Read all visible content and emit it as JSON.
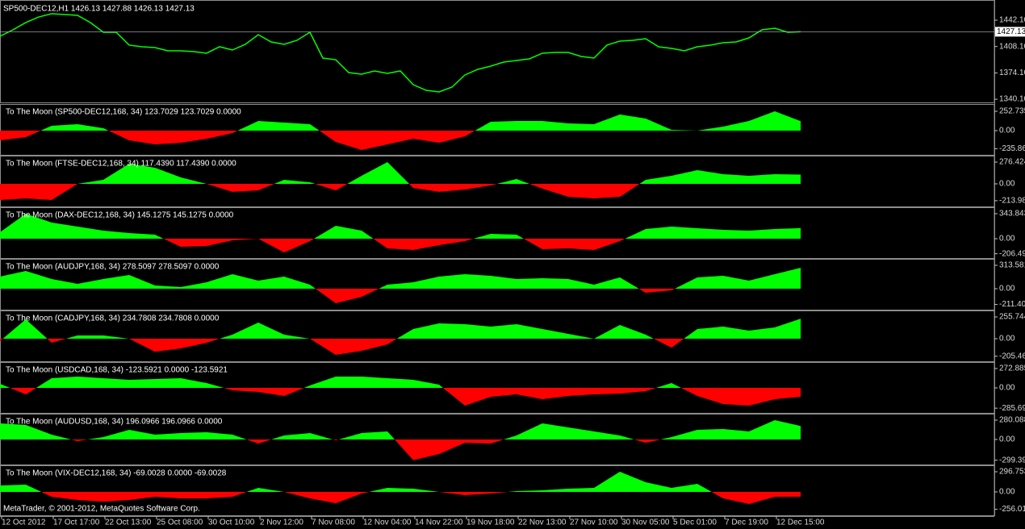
{
  "chart_data": [
    {
      "type": "line",
      "title": "SP500-DEC12,H1  1426.13 1427.88 1426.13 1427.13",
      "color": "#00ff00",
      "ylim": [
        1335,
        1466
      ],
      "yticks": [
        {
          "value": 1442.1,
          "label": "1442.10"
        },
        {
          "value": 1408.1,
          "label": "1408.10"
        },
        {
          "value": 1374.1,
          "label": "1374.10"
        },
        {
          "value": 1340.1,
          "label": "1340.10"
        }
      ],
      "current_price": 1427.13,
      "values": [
        1421.3,
        1429.6,
        1439.0,
        1446.2,
        1450.4,
        1449.4,
        1448.3,
        1439.0,
        1426.5,
        1426.5,
        1409.9,
        1407.8,
        1406.7,
        1402.6,
        1402.6,
        1401.5,
        1399.5,
        1407.8,
        1403.6,
        1410.9,
        1423.4,
        1414.0,
        1410.9,
        1416.1,
        1426.5,
        1393.2,
        1391.1,
        1374.5,
        1372.4,
        1376.6,
        1373.5,
        1376.6,
        1358.9,
        1351.6,
        1349.6,
        1355.8,
        1371.4,
        1378.7,
        1382.8,
        1388.0,
        1390.1,
        1392.2,
        1399.5,
        1400.5,
        1400.5,
        1395.3,
        1393.2,
        1409.9,
        1415.1,
        1416.1,
        1418.2,
        1407.8,
        1405.7,
        1402.6,
        1407.8,
        1409.9,
        1413.0,
        1414.0,
        1419.2,
        1429.6,
        1431.7,
        1426.5,
        1427.13
      ]
    },
    {
      "type": "area",
      "title": "To The Moon (SP500-DEC12,168, 34) 123.7029 123.7029 0.0000",
      "positive_color": "#00ff00",
      "negative_color": "#ff0000",
      "ylim": [
        -316,
        337
      ],
      "yticks": [
        252.735,
        {
          "value": 0,
          "label": "0.00"
        },
        -235.867
      ],
      "values": [
        -126,
        -84,
        63,
        84,
        32,
        -126,
        -179,
        -158,
        -105,
        -32,
        126,
        105,
        84,
        -147,
        -253,
        -179,
        -105,
        -158,
        -74,
        116,
        126,
        126,
        95,
        84,
        211,
        158,
        11,
        0,
        53,
        126,
        253,
        124
      ]
    },
    {
      "type": "area",
      "title": "To The Moon (FTSE-DEC12,168, 34) 117.4390 117.4390 0.0000",
      "positive_color": "#00ff00",
      "negative_color": "#ff0000",
      "ylim": [
        -287,
        348
      ],
      "yticks": [
        276.424,
        {
          "value": 0,
          "label": "0.00"
        },
        -213.981
      ],
      "values": [
        -205,
        -184,
        -205,
        0,
        51,
        256,
        205,
        82,
        0,
        -102,
        -82,
        51,
        20,
        -82,
        102,
        276,
        -51,
        -102,
        -72,
        -20,
        61,
        -61,
        -164,
        -184,
        -164,
        51,
        102,
        174,
        123,
        102,
        123,
        117
      ]
    },
    {
      "type": "area",
      "title": "To The Moon (DAX-DEC12,168, 34) 145.1275 145.1275 0.0000",
      "positive_color": "#00ff00",
      "negative_color": "#ff0000",
      "ylim": [
        -266,
        421
      ],
      "yticks": [
        343.843,
        {
          "value": 0,
          "label": "0.00"
        },
        -206.499
      ],
      "values": [
        89,
        344,
        222,
        166,
        111,
        78,
        55,
        -111,
        -100,
        -22,
        0,
        -189,
        -33,
        177,
        111,
        -133,
        -155,
        -89,
        -33,
        67,
        55,
        -144,
        -133,
        -155,
        -33,
        133,
        166,
        144,
        122,
        111,
        133,
        145
      ]
    },
    {
      "type": "area",
      "title": "To The Moon (AUDJPY,168, 34) 278.5097 278.5097 0.0000",
      "positive_color": "#00ff00",
      "negative_color": "#ff0000",
      "ylim": [
        -281,
        389
      ],
      "yticks": [
        313.581,
        {
          "value": 0,
          "label": "0.00"
        },
        -211.407
      ],
      "values": [
        162,
        238,
        130,
        65,
        130,
        184,
        43,
        22,
        86,
        195,
        108,
        162,
        54,
        -195,
        -108,
        54,
        86,
        162,
        195,
        173,
        130,
        141,
        130,
        54,
        151,
        -54,
        -22,
        151,
        173,
        108,
        195,
        279
      ]
    },
    {
      "type": "area",
      "title": "To The Moon (CADJPY,168, 34) 234.7808 234.7808 0.0000",
      "positive_color": "#00ff00",
      "negative_color": "#ff0000",
      "ylim": [
        -265,
        322
      ],
      "yticks": [
        255.744,
        {
          "value": 0,
          "label": "0.00"
        },
        -205.464
      ],
      "values": [
        -28,
        227,
        -47,
        38,
        38,
        0,
        -152,
        -114,
        -47,
        47,
        189,
        47,
        0,
        -189,
        -142,
        -66,
        114,
        180,
        170,
        142,
        170,
        114,
        57,
        0,
        161,
        47,
        -104,
        114,
        142,
        95,
        133,
        235
      ]
    },
    {
      "type": "area",
      "title": "To The Moon (USDCAD,168, 34) -123.5921 0.0000 -123.5921",
      "positive_color": "#00ff00",
      "negative_color": "#ff0000",
      "ylim": [
        -352,
        352
      ],
      "yticks": [
        272.885,
        {
          "value": 0,
          "label": "0.00"
        },
        -285.693
      ],
      "values": [
        57,
        -91,
        136,
        159,
        136,
        114,
        125,
        136,
        68,
        -34,
        -57,
        -114,
        34,
        159,
        159,
        136,
        114,
        45,
        -250,
        -125,
        -91,
        -159,
        -114,
        -91,
        -80,
        -45,
        68,
        -114,
        -227,
        -250,
        -159,
        -124
      ]
    },
    {
      "type": "area",
      "title": "To The Moon (AUDUSD,168, 34) 196.0966 196.0966 0.0000",
      "positive_color": "#00ff00",
      "negative_color": "#ff0000",
      "ylim": [
        -362,
        362
      ],
      "yticks": [
        280.088,
        {
          "value": 0,
          "label": "0.00"
        },
        -299.399
      ],
      "values": [
        233,
        210,
        70,
        -23,
        35,
        140,
        70,
        93,
        105,
        70,
        -58,
        58,
        93,
        -12,
        93,
        117,
        -299,
        -210,
        -47,
        -58,
        58,
        233,
        175,
        117,
        58,
        -47,
        35,
        140,
        152,
        117,
        280,
        196
      ]
    },
    {
      "type": "area",
      "title": "To The Moon (VIX-DEC12,168, 34) -69.0028 0.0000 -69.0028",
      "positive_color": "#00ff00",
      "negative_color": "#ff0000",
      "ylim": [
        -356,
        380
      ],
      "yticks": [
        296.753,
        {
          "value": 0,
          "label": "0.00"
        },
        -256.014
      ],
      "values": [
        95,
        107,
        -71,
        -119,
        -142,
        -119,
        -71,
        -95,
        -95,
        -71,
        59,
        0,
        -95,
        -166,
        -24,
        59,
        47,
        0,
        -47,
        -24,
        12,
        24,
        47,
        59,
        297,
        142,
        59,
        119,
        -95,
        -178,
        -71,
        -69
      ]
    }
  ],
  "time_axis": {
    "labels": [
      "12 Oct 2012",
      "17 Oct 17:00",
      "22 Oct 13:00",
      "25 Oct 08:00",
      "30 Oct 10:00",
      "2 Nov 12:00",
      "7 Nov 08:00",
      "12 Nov 04:00",
      "14 Nov 22:00",
      "19 Nov 18:00",
      "22 Nov 13:00",
      "27 Nov 10:00",
      "30 Nov 05:00",
      "5 Dec 01:00",
      "7 Dec 19:00",
      "12 Dec 15:00"
    ]
  },
  "footer": "MetaTrader, © 2001-2012, MetaQuotes Software Corp."
}
